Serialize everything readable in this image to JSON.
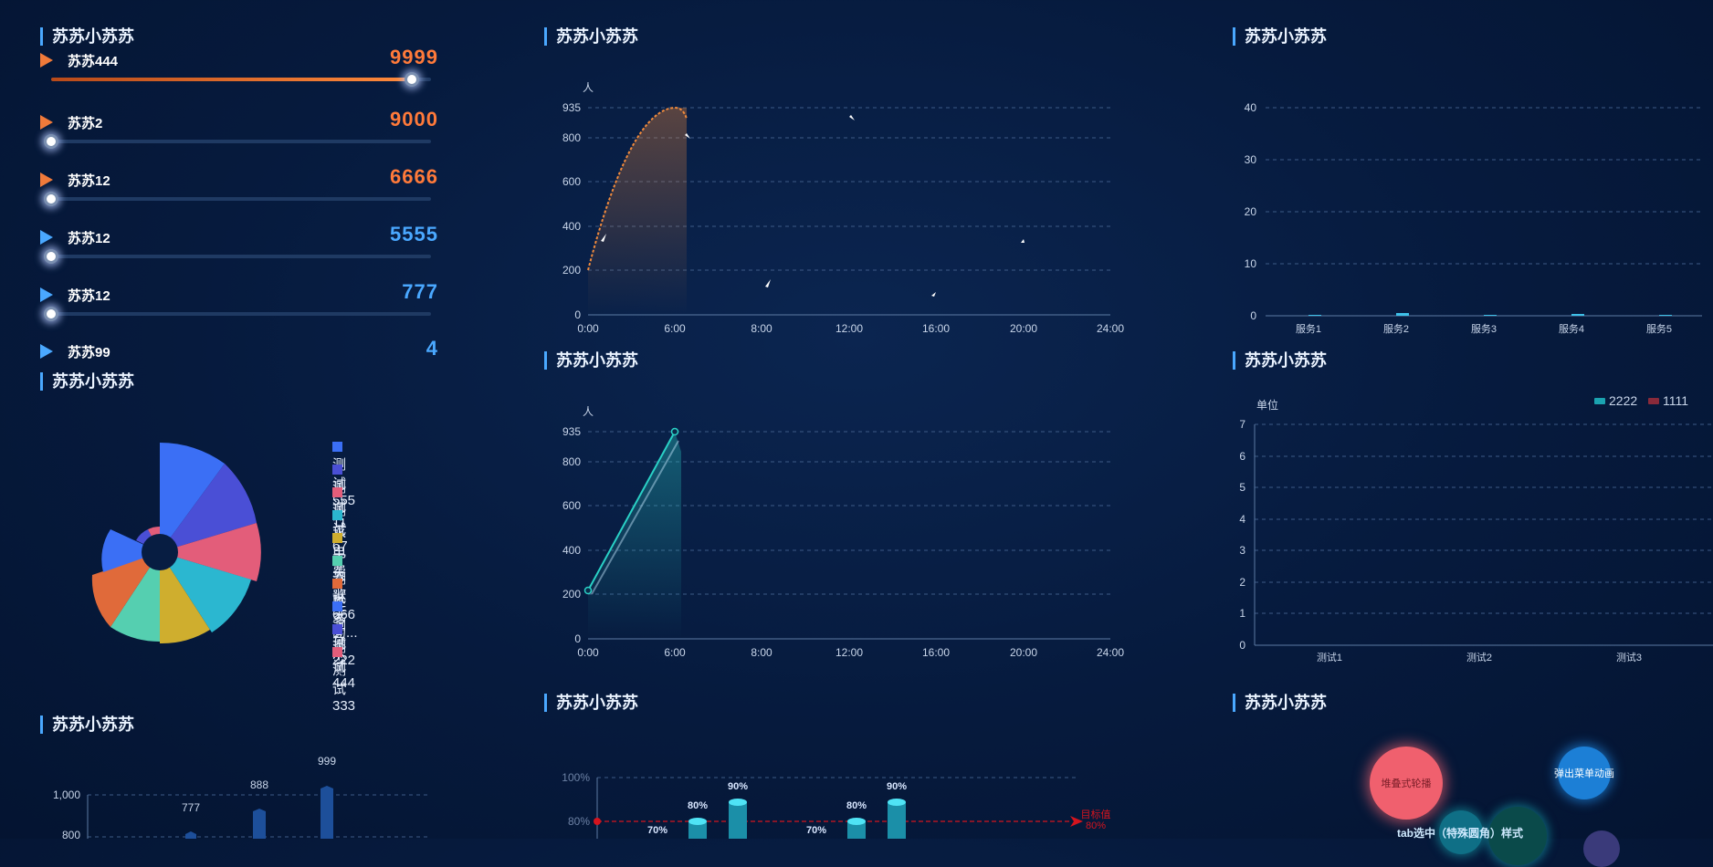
{
  "titles": {
    "p1": "苏苏小苏苏",
    "p2": "苏苏小苏苏",
    "p3": "苏苏小苏苏",
    "p4": "苏苏小苏苏",
    "p5": "苏苏小苏苏",
    "p6": "苏苏小苏苏",
    "p7": "苏苏小苏苏",
    "p8": "苏苏小苏苏",
    "p9": "苏苏小苏苏"
  },
  "ranking": {
    "items": [
      {
        "label": "苏苏2",
        "value": "9000",
        "progress": 0.0,
        "color": "#ff7a3a"
      },
      {
        "label": "苏苏12",
        "value": "6666",
        "progress": 0.0,
        "color": "#ff7a3a"
      },
      {
        "label": "苏苏12",
        "value": "5555",
        "progress": 0.0,
        "color": "#4aa8ff"
      },
      {
        "label": "苏苏12",
        "value": "777",
        "progress": 0.0,
        "color": "#4aa8ff"
      }
    ],
    "partial_top": {
      "label": "苏苏444",
      "value": "9999",
      "progress": 0.95
    },
    "partial_bottom": {
      "label": "苏苏99",
      "value": "4"
    }
  },
  "line_chart_1": {
    "chart_data": {
      "type": "line",
      "y_unit": "人",
      "yticks": [
        "935",
        "800",
        "600",
        "400",
        "200",
        "0"
      ],
      "xticks": [
        "0:00",
        "6:00",
        "8:00",
        "12:00",
        "16:00",
        "20:00",
        "24:00"
      ],
      "ylim": [
        0,
        935
      ],
      "series": [
        {
          "x": [
            "0:00",
            "6:00"
          ],
          "values": [
            200,
            935
          ]
        }
      ],
      "line_color": "#f08a3c"
    }
  },
  "line_chart_2": {
    "chart_data": {
      "type": "line",
      "y_unit": "人",
      "yticks": [
        "935",
        "800",
        "600",
        "400",
        "200",
        "0"
      ],
      "xticks": [
        "0:00",
        "6:00",
        "8:00",
        "12:00",
        "16:00",
        "20:00",
        "24:00"
      ],
      "ylim": [
        0,
        935
      ],
      "series": [
        {
          "x": [
            "0:00",
            "6:00"
          ],
          "values": [
            220,
            935
          ]
        }
      ],
      "line_color": "#2ad1c6"
    }
  },
  "bar_chart_services": {
    "chart_data": {
      "type": "bar",
      "categories": [
        "服务1",
        "服务2",
        "服务3",
        "服务4",
        "服务5"
      ],
      "values": [
        0,
        0.5,
        0.2,
        0.3,
        0.2
      ],
      "yticks": [
        "40",
        "30",
        "20",
        "10",
        "0"
      ],
      "ylim": [
        0,
        40
      ]
    }
  },
  "bar_chart_tests": {
    "chart_data": {
      "type": "bar",
      "y_unit": "单位",
      "categories": [
        "测试1",
        "测试2",
        "测试3"
      ],
      "yticks": [
        "7",
        "6",
        "5",
        "4",
        "3",
        "2",
        "1",
        "0"
      ],
      "ylim": [
        0,
        7
      ],
      "legend": [
        {
          "name": "2222",
          "color": "#1ba3b0"
        },
        {
          "name": "1111",
          "color": "#8a2a3a"
        }
      ]
    }
  },
  "rose_chart": {
    "chart_data": {
      "type": "pie",
      "legend": [
        {
          "name": "测试555",
          "color": "#3b6ff5"
        },
        {
          "name": "测试11",
          "color": "#4a4fd6"
        },
        {
          "name": "测试67",
          "color": "#e35d7a"
        },
        {
          "name": "水电费",
          "color": "#2bb7d0"
        },
        {
          "name": "十大歌手的...",
          "color": "#cfae2e"
        },
        {
          "name": "测试666",
          "color": "#55cfb0"
        },
        {
          "name": "胜多负少",
          "color": "#e06a3a"
        },
        {
          "name": "测试222",
          "color": "#3b6ff5"
        },
        {
          "name": "测试444",
          "color": "#4a4fd6"
        },
        {
          "name": "测试333",
          "color": "#e35d7a"
        }
      ]
    }
  },
  "bar_chart_bottom": {
    "chart_data": {
      "type": "bar",
      "yticks": [
        "1,000",
        "800"
      ],
      "labels": [
        "777",
        "888",
        "999"
      ],
      "values": [
        777,
        888,
        999
      ]
    }
  },
  "cylinder_chart": {
    "chart_data": {
      "type": "bar",
      "yticks": [
        "100%",
        "80%"
      ],
      "labels": [
        "70%",
        "80%",
        "90%",
        "70%",
        "80%",
        "90%"
      ],
      "values": [
        70,
        80,
        90,
        70,
        80,
        90
      ],
      "target_label": "目标值",
      "target_value": "80%"
    }
  },
  "bubbles": {
    "items": [
      {
        "label": "堆叠式轮播",
        "color": "#f0606e"
      },
      {
        "label": "弹出菜单动画",
        "color": "#1c7fd6"
      },
      {
        "label": "tab选中（特殊圆角）样式",
        "color": "#16a9b4"
      }
    ]
  }
}
